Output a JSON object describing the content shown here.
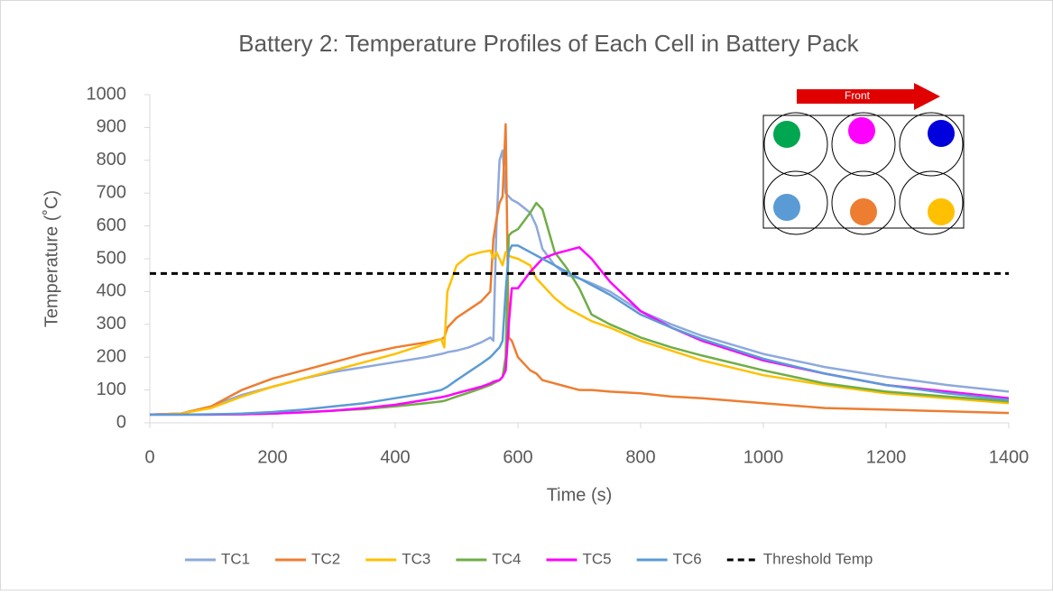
{
  "chart_data": {
    "type": "line",
    "title": "Battery 2: Temperature Profiles of Each Cell in Battery Pack",
    "x_label": "Time (s)",
    "y_label": "Temperature (˚C)",
    "xlim": [
      0,
      1400
    ],
    "xticks": [
      0,
      200,
      400,
      600,
      800,
      1000,
      1200,
      1400
    ],
    "ylim": [
      0,
      1000
    ],
    "yticks": [
      0,
      100,
      200,
      300,
      400,
      500,
      600,
      700,
      800,
      900,
      1000
    ],
    "grid": false,
    "legend": "bottom",
    "x": [
      0,
      50,
      100,
      150,
      200,
      250,
      300,
      350,
      400,
      450,
      475,
      480,
      485,
      500,
      520,
      540,
      555,
      560,
      565,
      570,
      575,
      580,
      585,
      590,
      600,
      620,
      630,
      640,
      660,
      680,
      700,
      720,
      750,
      800,
      850,
      900,
      1000,
      1100,
      1200,
      1300,
      1400
    ],
    "series": [
      {
        "name": "TC1",
        "color": "#8EA9DB",
        "values": [
          25,
          28,
          50,
          85,
          110,
          135,
          155,
          170,
          185,
          200,
          210,
          212,
          215,
          220,
          230,
          245,
          260,
          250,
          600,
          800,
          830,
          700,
          690,
          680,
          670,
          640,
          600,
          530,
          480,
          450,
          440,
          425,
          400,
          340,
          300,
          265,
          210,
          170,
          140,
          115,
          95
        ]
      },
      {
        "name": "TC2",
        "color": "#ED7D31",
        "values": [
          25,
          28,
          50,
          100,
          135,
          160,
          185,
          210,
          230,
          245,
          255,
          260,
          290,
          320,
          345,
          370,
          400,
          560,
          620,
          670,
          690,
          910,
          260,
          250,
          200,
          160,
          150,
          130,
          120,
          110,
          100,
          100,
          95,
          90,
          80,
          75,
          60,
          45,
          40,
          35,
          30
        ]
      },
      {
        "name": "TC3",
        "color": "#FFC000",
        "values": [
          25,
          28,
          45,
          80,
          110,
          135,
          160,
          185,
          210,
          240,
          255,
          230,
          400,
          480,
          510,
          520,
          525,
          500,
          520,
          500,
          480,
          520,
          510,
          505,
          500,
          480,
          440,
          420,
          380,
          350,
          330,
          310,
          290,
          250,
          220,
          190,
          145,
          115,
          90,
          75,
          60
        ]
      },
      {
        "name": "TC4",
        "color": "#70AD47",
        "values": [
          25,
          25,
          25,
          26,
          28,
          32,
          37,
          42,
          50,
          60,
          65,
          67,
          70,
          80,
          92,
          105,
          115,
          120,
          125,
          130,
          140,
          200,
          570,
          580,
          590,
          640,
          670,
          650,
          520,
          470,
          410,
          330,
          300,
          260,
          230,
          205,
          160,
          120,
          95,
          80,
          65
        ]
      },
      {
        "name": "TC5",
        "color": "#FF00FF",
        "values": [
          25,
          25,
          25,
          26,
          28,
          32,
          37,
          45,
          55,
          70,
          78,
          80,
          82,
          90,
          100,
          110,
          120,
          125,
          128,
          130,
          140,
          160,
          300,
          410,
          410,
          460,
          480,
          500,
          515,
          525,
          535,
          500,
          430,
          340,
          290,
          250,
          190,
          150,
          115,
          95,
          75
        ]
      },
      {
        "name": "TC6",
        "color": "#5B9BD5",
        "values": [
          25,
          25,
          26,
          28,
          33,
          40,
          50,
          60,
          75,
          90,
          100,
          105,
          110,
          130,
          155,
          180,
          200,
          210,
          220,
          230,
          250,
          400,
          520,
          540,
          540,
          520,
          510,
          500,
          480,
          460,
          440,
          420,
          390,
          330,
          290,
          255,
          195,
          150,
          115,
          90,
          70
        ]
      }
    ],
    "threshold": {
      "name": "Threshold Temp",
      "value": 455,
      "color": "#000000"
    },
    "inset": {
      "label": "Front"
    }
  }
}
